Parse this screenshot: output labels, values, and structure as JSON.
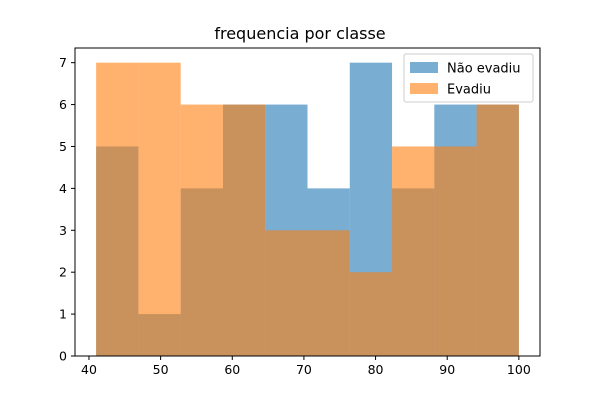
{
  "chart_data": {
    "type": "histogram",
    "title": "frequencia por classe",
    "xlabel": "",
    "ylabel": "",
    "xlim": [
      38.05,
      102.95
    ],
    "ylim": [
      0,
      7.35
    ],
    "bin_edges": [
      41,
      46.9,
      52.8,
      58.7,
      64.6,
      70.5,
      76.4,
      82.3,
      88.2,
      94.1,
      100
    ],
    "xticks": [
      40,
      50,
      60,
      70,
      80,
      90,
      100
    ],
    "yticks": [
      0,
      1,
      2,
      3,
      4,
      5,
      6,
      7
    ],
    "legend_position": "top-right",
    "series": [
      {
        "name": "Não evadiu",
        "color": "#1f77b4",
        "alpha": 0.6,
        "values": [
          5,
          1,
          4,
          6,
          6,
          4,
          7,
          4,
          6,
          6
        ]
      },
      {
        "name": "Evadiu",
        "color": "#ff7f0e",
        "alpha": 0.6,
        "values": [
          7,
          7,
          6,
          6,
          3,
          3,
          2,
          5,
          5,
          6
        ]
      }
    ]
  }
}
